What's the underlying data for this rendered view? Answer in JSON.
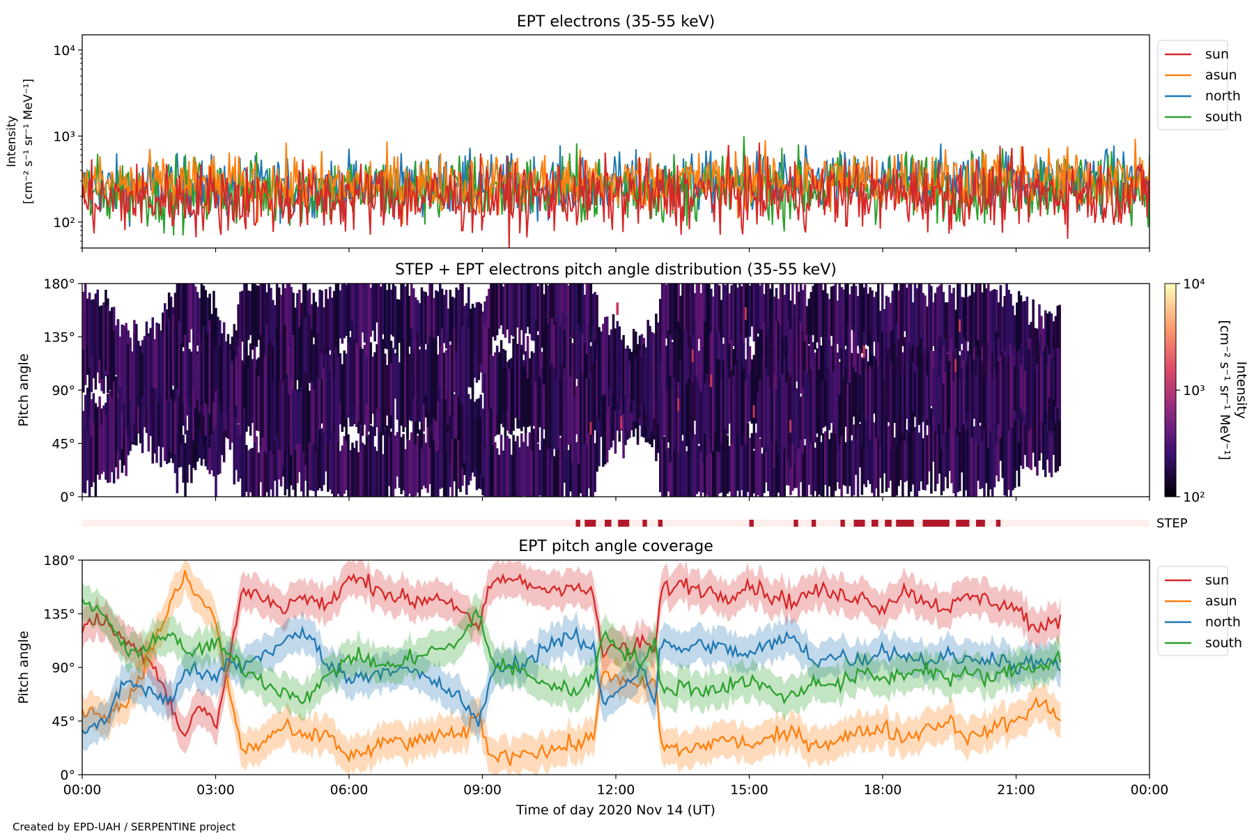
{
  "footer": {
    "credit": "Created by EPD-UAH / SERPENTINE project"
  },
  "colors": {
    "sun": "#d62728",
    "asun": "#ff7f0e",
    "north": "#1f77b4",
    "south": "#2ca02c",
    "step_bar": "#b2182b",
    "step_bg": "#fdf0ec"
  },
  "chart_data": [
    {
      "type": "line",
      "title": "EPT electrons (35-55 keV)",
      "xlabel": "",
      "ylabel": [
        "Intensity",
        "[cm⁻² s⁻¹ sr⁻¹ MeV⁻¹]"
      ],
      "yscale": "log",
      "ylim": [
        50,
        15000
      ],
      "yticks": [
        {
          "value": 100,
          "label": "10²"
        },
        {
          "value": 1000,
          "label": "10³"
        },
        {
          "value": 10000,
          "label": "10⁴"
        }
      ],
      "xlim_hours": [
        0,
        24
      ],
      "legend": "upper right outside",
      "series": [
        {
          "name": "sun",
          "color": "#d62728",
          "typical": 180,
          "spread": 0.35
        },
        {
          "name": "asun",
          "color": "#ff7f0e",
          "typical": 260,
          "spread": 0.3
        },
        {
          "name": "north",
          "color": "#1f77b4",
          "typical": 250,
          "spread": 0.3
        },
        {
          "name": "south",
          "color": "#2ca02c",
          "typical": 220,
          "spread": 0.35
        }
      ]
    },
    {
      "type": "heatmap",
      "title": "STEP + EPT electrons pitch angle distribution (35-55 keV)",
      "ylabel": "Pitch angle",
      "ylim": [
        0,
        180
      ],
      "yticks": [
        "0°",
        "45°",
        "90°",
        "135°",
        "180°"
      ],
      "xlim_hours": [
        0,
        24
      ],
      "data_end_hour": 22,
      "colorbar": {
        "label": [
          "Intensity",
          "[cm⁻² s⁻¹ sr⁻¹ MeV⁻¹]"
        ],
        "scale": "log",
        "range": [
          100,
          10000
        ],
        "ticks": [
          {
            "value": 100,
            "label": "10²"
          },
          {
            "value": 1000,
            "label": "10³"
          },
          {
            "value": 10000,
            "label": "10⁴"
          }
        ]
      }
    },
    {
      "type": "bar",
      "label": "STEP",
      "xlim_hours": [
        0,
        24
      ],
      "intervals_hours": [
        [
          11.1,
          11.2
        ],
        [
          11.3,
          11.55
        ],
        [
          11.75,
          11.9
        ],
        [
          12.05,
          12.3
        ],
        [
          12.6,
          12.7
        ],
        [
          12.95,
          13.05
        ],
        [
          15.0,
          15.1
        ],
        [
          16.0,
          16.1
        ],
        [
          16.4,
          16.5
        ],
        [
          17.05,
          17.15
        ],
        [
          17.35,
          17.6
        ],
        [
          17.75,
          17.9
        ],
        [
          18.05,
          18.2
        ],
        [
          18.3,
          18.7
        ],
        [
          18.9,
          19.5
        ],
        [
          19.65,
          19.95
        ],
        [
          20.1,
          20.3
        ],
        [
          20.55,
          20.65
        ]
      ]
    },
    {
      "type": "line",
      "title": "EPT pitch angle coverage",
      "ylabel": "Pitch angle",
      "xlabel": "Time of day 2020 Nov 14 (UT)",
      "ylim": [
        0,
        180
      ],
      "yticks": [
        "0°",
        "45°",
        "90°",
        "135°",
        "180°"
      ],
      "xticks": [
        "00:00",
        "03:00",
        "06:00",
        "09:00",
        "12:00",
        "15:00",
        "18:00",
        "21:00",
        "00:00"
      ],
      "xlim_hours": [
        0,
        24
      ],
      "data_end_hour": 22,
      "legend": "upper right outside",
      "series": [
        {
          "name": "sun",
          "color": "#d62728",
          "x": [
            0,
            0.5,
            1,
            1.5,
            2,
            2.3,
            2.6,
            3,
            3.3,
            3.6,
            4,
            4.5,
            5,
            5.5,
            6,
            6.5,
            7,
            7.5,
            8,
            8.5,
            8.9,
            9.2,
            9.5,
            10,
            10.5,
            11,
            11.5,
            11.7,
            12,
            12.3,
            12.6,
            12.9,
            13,
            13.5,
            14,
            14.5,
            15,
            15.5,
            16,
            16.5,
            17,
            17.5,
            18,
            18.5,
            19,
            19.5,
            20,
            20.5,
            21,
            21.5,
            22
          ],
          "y": [
            125,
            130,
            110,
            100,
            60,
            30,
            60,
            40,
            95,
            155,
            150,
            140,
            150,
            140,
            165,
            160,
            150,
            145,
            150,
            140,
            120,
            160,
            165,
            160,
            155,
            160,
            150,
            100,
            110,
            100,
            115,
            100,
            155,
            160,
            155,
            150,
            160,
            150,
            145,
            155,
            150,
            150,
            140,
            155,
            145,
            140,
            150,
            145,
            140,
            120,
            130
          ]
        },
        {
          "name": "asun",
          "color": "#ff7f0e",
          "x": [
            0,
            0.5,
            1,
            1.5,
            2,
            2.3,
            2.6,
            3,
            3.3,
            3.6,
            4,
            4.5,
            5,
            5.5,
            6,
            6.5,
            7,
            7.5,
            8,
            8.5,
            8.9,
            9.2,
            9.5,
            10,
            10.5,
            11,
            11.5,
            11.7,
            12,
            12.3,
            12.6,
            12.9,
            13,
            13.5,
            14,
            14.5,
            15,
            15.5,
            16,
            16.5,
            17,
            17.5,
            18,
            18.5,
            19,
            19.5,
            20,
            20.5,
            21,
            21.5,
            22
          ],
          "y": [
            55,
            50,
            60,
            100,
            145,
            165,
            150,
            130,
            70,
            20,
            25,
            40,
            30,
            35,
            15,
            20,
            30,
            25,
            35,
            30,
            50,
            15,
            15,
            20,
            20,
            25,
            30,
            90,
            80,
            75,
            75,
            80,
            25,
            20,
            25,
            30,
            25,
            30,
            35,
            25,
            30,
            35,
            40,
            30,
            40,
            45,
            30,
            40,
            45,
            60,
            50
          ]
        },
        {
          "name": "north",
          "color": "#1f77b4",
          "x": [
            0,
            0.5,
            1,
            1.5,
            2,
            2.3,
            2.6,
            3,
            3.3,
            3.6,
            4,
            4.5,
            5,
            5.5,
            6,
            6.5,
            7,
            7.5,
            8,
            8.5,
            8.9,
            9.2,
            9.5,
            10,
            10.5,
            11,
            11.5,
            11.7,
            12,
            12.3,
            12.6,
            12.9,
            13,
            13.5,
            14,
            14.5,
            15,
            15.5,
            16,
            16.5,
            17,
            17.5,
            18,
            18.5,
            19,
            19.5,
            20,
            20.5,
            21,
            21.5,
            22
          ],
          "y": [
            35,
            45,
            80,
            70,
            60,
            90,
            85,
            80,
            95,
            90,
            100,
            110,
            120,
            95,
            80,
            85,
            90,
            85,
            75,
            65,
            40,
            85,
            90,
            95,
            110,
            115,
            105,
            60,
            70,
            80,
            90,
            60,
            110,
            105,
            110,
            105,
            100,
            110,
            115,
            95,
            100,
            95,
            105,
            100,
            95,
            100,
            95,
            100,
            90,
            95,
            90
          ]
        },
        {
          "name": "south",
          "color": "#2ca02c",
          "x": [
            0,
            0.5,
            1,
            1.5,
            2,
            2.3,
            2.6,
            3,
            3.3,
            3.6,
            4,
            4.5,
            5,
            5.5,
            6,
            6.5,
            7,
            7.5,
            8,
            8.5,
            8.9,
            9.2,
            9.5,
            10,
            10.5,
            11,
            11.5,
            11.7,
            12,
            12.3,
            12.6,
            12.9,
            13,
            13.5,
            14,
            14.5,
            15,
            15.5,
            16,
            16.5,
            17,
            17.5,
            18,
            18.5,
            19,
            19.5,
            20,
            20.5,
            21,
            21.5,
            22
          ],
          "y": [
            145,
            135,
            100,
            110,
            120,
            100,
            105,
            110,
            100,
            90,
            80,
            70,
            65,
            80,
            100,
            95,
            90,
            100,
            105,
            110,
            140,
            95,
            90,
            85,
            75,
            70,
            80,
            120,
            110,
            100,
            95,
            110,
            70,
            75,
            70,
            75,
            80,
            70,
            65,
            80,
            75,
            85,
            80,
            85,
            90,
            80,
            85,
            80,
            90,
            90,
            100
          ]
        }
      ]
    }
  ]
}
